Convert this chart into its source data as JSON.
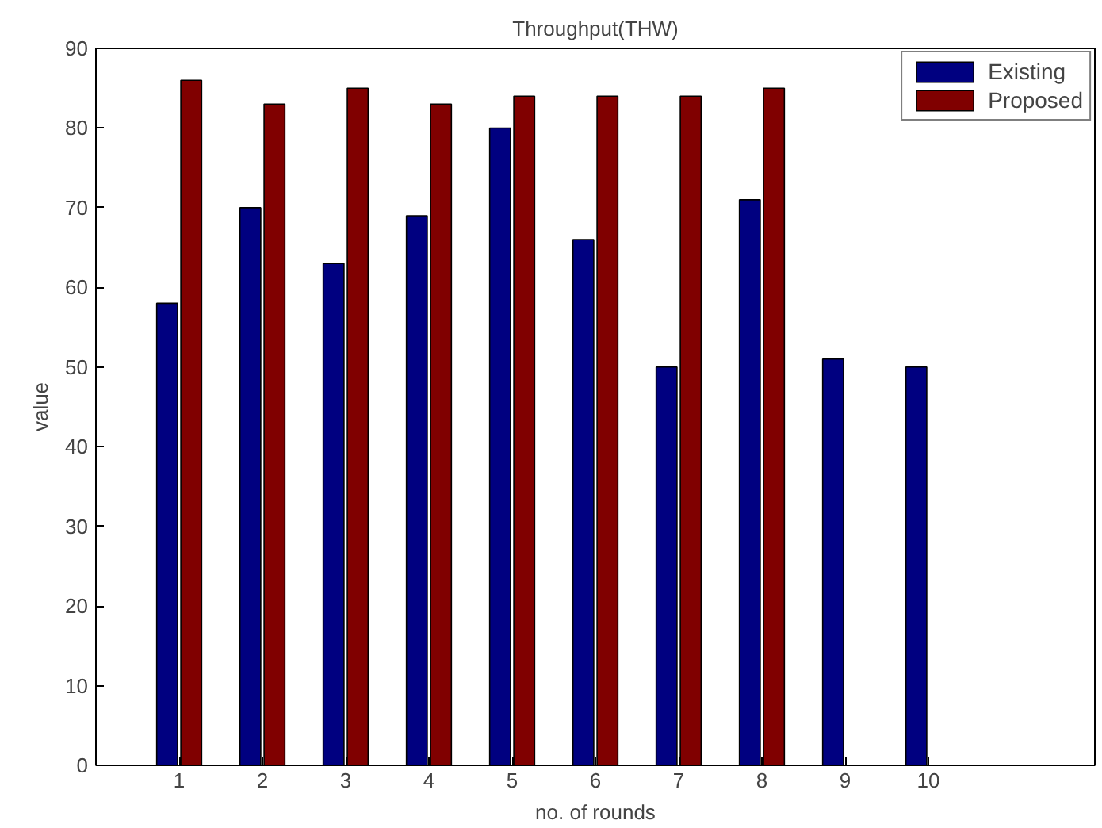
{
  "chart_data": {
    "type": "bar",
    "title": "Throughput(THW)",
    "xlabel": "no. of rounds",
    "ylabel": "value",
    "x": [
      1,
      2,
      3,
      4,
      5,
      6,
      7,
      8,
      9,
      10
    ],
    "xlim": [
      0,
      12
    ],
    "xticks": [
      1,
      2,
      3,
      4,
      5,
      6,
      7,
      8,
      9,
      10
    ],
    "ylim": [
      0,
      90
    ],
    "yticks": [
      0,
      10,
      20,
      30,
      40,
      50,
      60,
      70,
      80,
      90
    ],
    "series": [
      {
        "name": "Existing",
        "color": "#000080",
        "values": [
          58,
          70,
          63,
          69,
          80,
          66,
          50,
          71,
          51,
          50
        ]
      },
      {
        "name": "Proposed",
        "color": "#800000",
        "values": [
          86,
          83,
          85,
          83,
          84,
          84,
          84,
          85,
          null,
          null
        ]
      }
    ],
    "legend": "top right",
    "grid": false
  }
}
